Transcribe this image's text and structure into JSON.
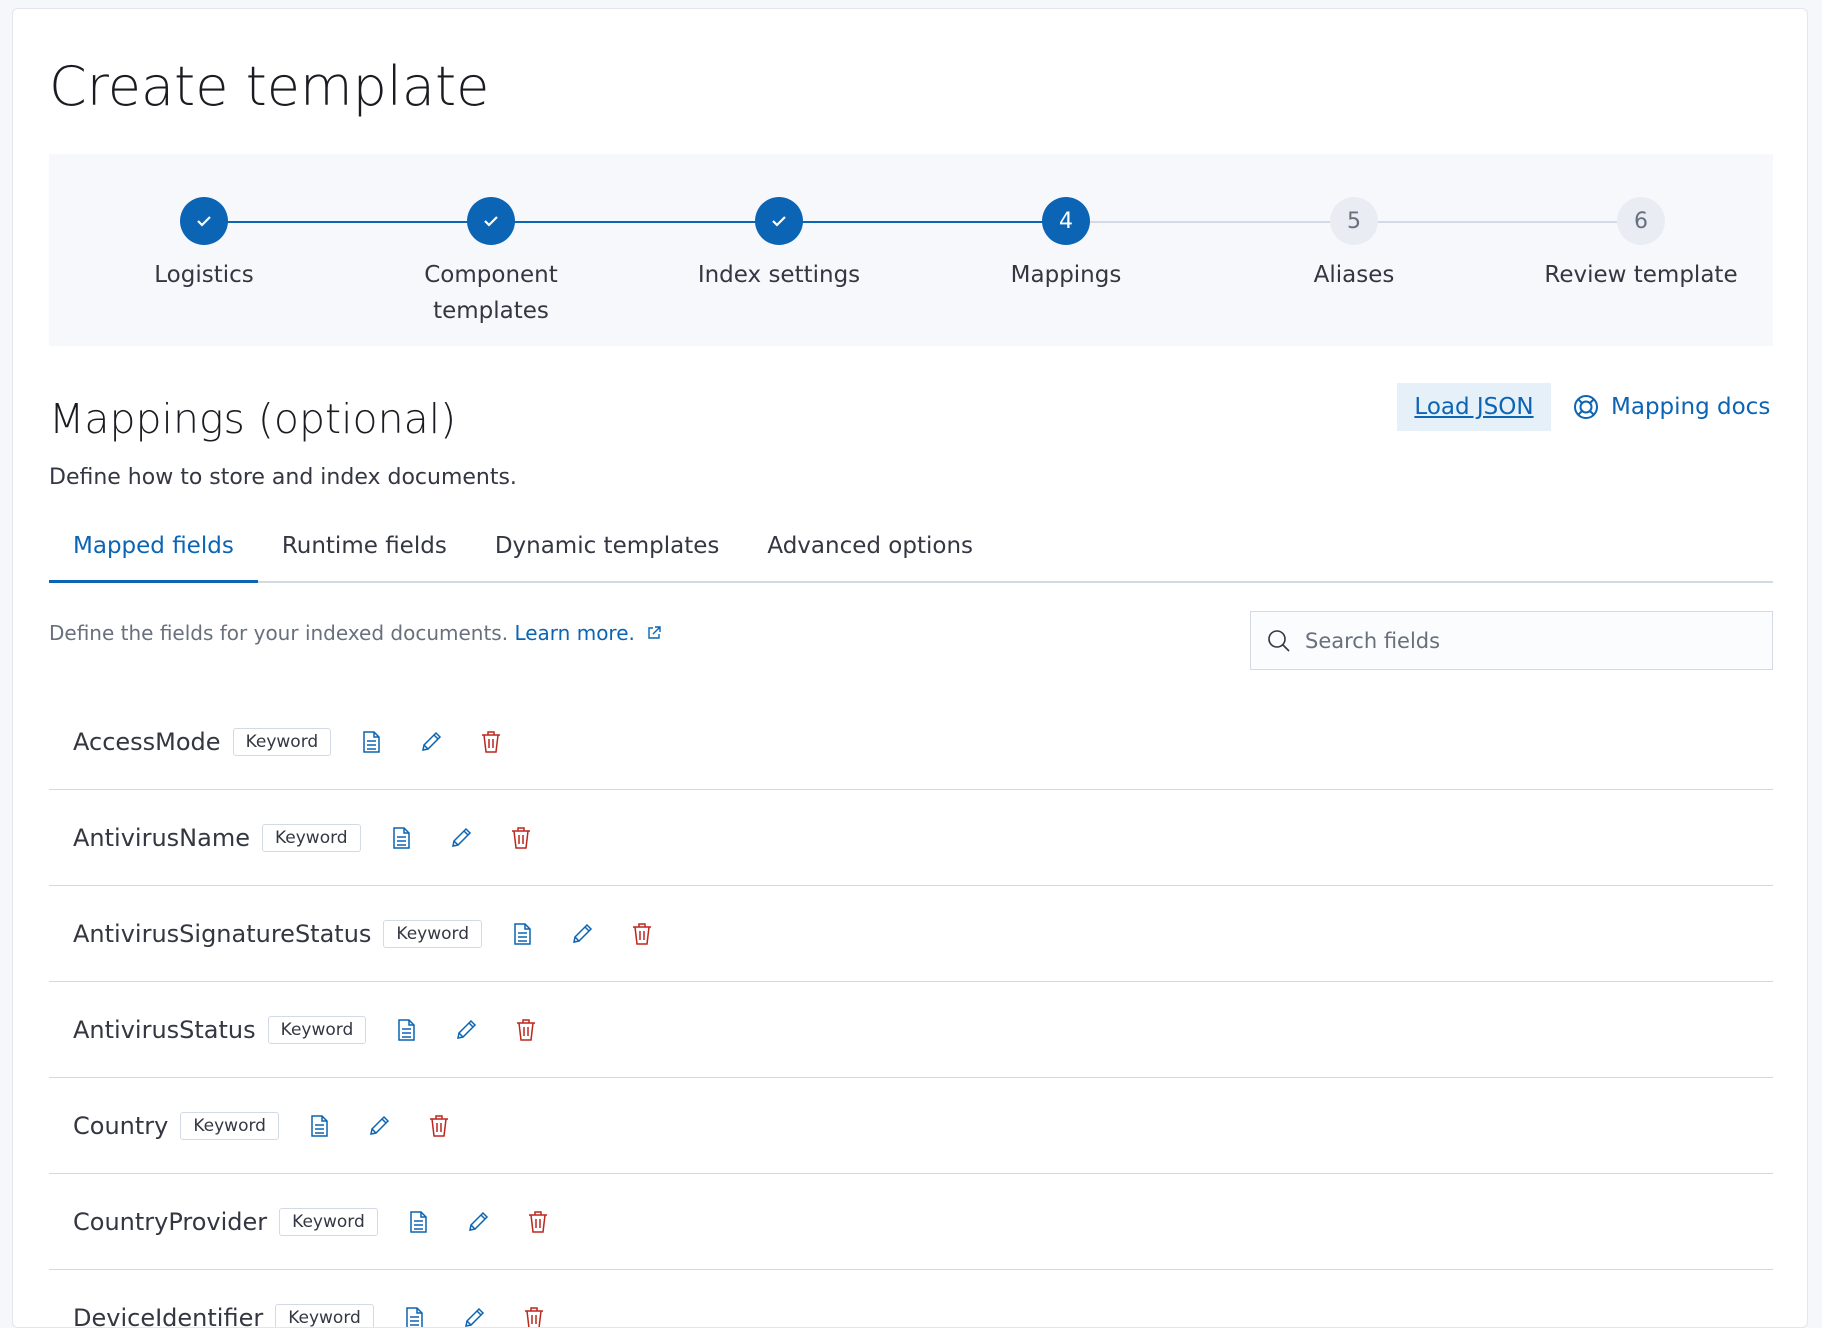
{
  "page": {
    "title": "Create template"
  },
  "stepper": {
    "steps": [
      {
        "label": "Logistics",
        "status": "complete",
        "number": "1"
      },
      {
        "label": "Component templates",
        "status": "complete",
        "number": "2"
      },
      {
        "label": "Index settings",
        "status": "complete",
        "number": "3"
      },
      {
        "label": "Mappings",
        "status": "current",
        "number": "4"
      },
      {
        "label": "Aliases",
        "status": "incomplete",
        "number": "5"
      },
      {
        "label": "Review template",
        "status": "incomplete",
        "number": "6"
      }
    ]
  },
  "section": {
    "title": "Mappings (optional)",
    "subtitle": "Define how to store and index documents.",
    "load_json": "Load JSON",
    "mapping_docs": "Mapping docs"
  },
  "tabs": [
    {
      "label": "Mapped fields",
      "active": true
    },
    {
      "label": "Runtime fields"
    },
    {
      "label": "Dynamic templates"
    },
    {
      "label": "Advanced options"
    }
  ],
  "mapped": {
    "description": "Define the fields for your indexed documents.",
    "learn_more": "Learn more.",
    "search_placeholder": "Search fields"
  },
  "fields": [
    {
      "name": "AccessMode",
      "type": "Keyword"
    },
    {
      "name": "AntivirusName",
      "type": "Keyword"
    },
    {
      "name": "AntivirusSignatureStatus",
      "type": "Keyword"
    },
    {
      "name": "AntivirusStatus",
      "type": "Keyword"
    },
    {
      "name": "Country",
      "type": "Keyword"
    },
    {
      "name": "CountryProvider",
      "type": "Keyword"
    },
    {
      "name": "DeviceIdentifier",
      "type": "Keyword"
    }
  ],
  "colors": {
    "primary": "#0b64b4",
    "danger": "#bd271e"
  }
}
